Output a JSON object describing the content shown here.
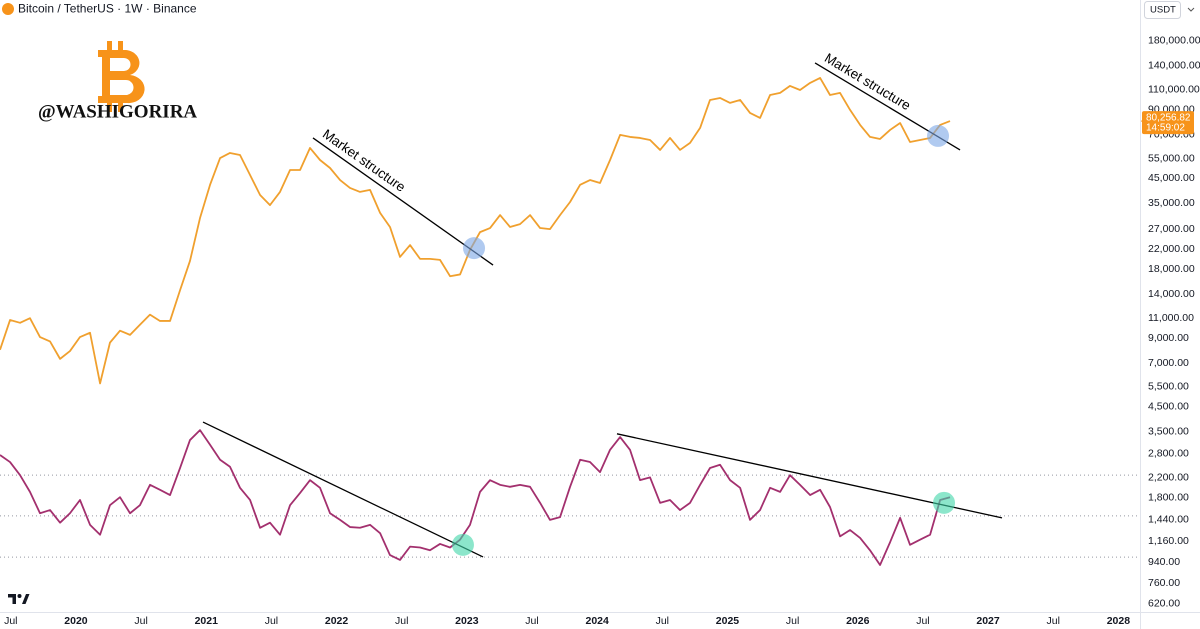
{
  "header": {
    "symbol": "Bitcoin / TetherUS · 1W · Binance",
    "currency": "USDT",
    "watermark": "@WASHIGORIRA"
  },
  "chart_data": {
    "type": "line",
    "log_scale": true,
    "xlim": [
      2019.417,
      2028.166
    ],
    "ylim": [
      569,
      272000
    ],
    "x": [
      2019.417,
      2019.494,
      2019.571,
      2019.647,
      2019.724,
      2019.801,
      2019.878,
      2019.954,
      2020.031,
      2020.108,
      2020.185,
      2020.261,
      2020.338,
      2020.415,
      2020.491,
      2020.568,
      2020.645,
      2020.722,
      2020.799,
      2020.875,
      2020.952,
      2021.029,
      2021.106,
      2021.182,
      2021.259,
      2021.336,
      2021.413,
      2021.489,
      2021.566,
      2021.643,
      2021.72,
      2021.796,
      2021.873,
      2021.95,
      2022.027,
      2022.103,
      2022.18,
      2022.257,
      2022.334,
      2022.41,
      2022.487,
      2022.564,
      2022.641,
      2022.717,
      2022.794,
      2022.871,
      2022.948,
      2023.024,
      2023.101,
      2023.178,
      2023.255,
      2023.331,
      2023.408,
      2023.485,
      2023.562,
      2023.638,
      2023.715,
      2023.792,
      2023.869,
      2023.945,
      2024.022,
      2024.099,
      2024.176,
      2024.252,
      2024.329,
      2024.406,
      2024.483,
      2024.559,
      2024.636,
      2024.713,
      2024.79,
      2024.866,
      2024.943,
      2025.02,
      2025.097,
      2025.173,
      2025.25,
      2025.327,
      2025.404,
      2025.48,
      2025.557,
      2025.634,
      2025.711,
      2025.787,
      2025.864,
      2025.941,
      2026.018,
      2026.094,
      2026.171,
      2026.248,
      2026.325,
      2026.401,
      2026.478,
      2026.555,
      2026.632,
      2026.708
    ],
    "series": [
      {
        "color": "#f0a02e",
        "values": [
          8000,
          10800,
          10500,
          11000,
          9100,
          8700,
          7300,
          7900,
          9100,
          9500,
          5700,
          8600,
          9700,
          9300,
          10300,
          11400,
          10700,
          10700,
          14600,
          19600,
          30200,
          42200,
          55300,
          58200,
          57000,
          46600,
          38100,
          34400,
          39300,
          49000,
          49000,
          61200,
          54200,
          50000,
          44300,
          40900,
          39300,
          40100,
          31800,
          27600,
          20400,
          23000,
          20000,
          20000,
          19800,
          16800,
          17100,
          21900,
          26200,
          27300,
          31100,
          27600,
          28400,
          31100,
          27300,
          27000,
          31100,
          35500,
          42200,
          44300,
          43000,
          54200,
          69800,
          68400,
          67700,
          66300,
          60000,
          67700,
          60000,
          64400,
          74900,
          99300,
          101300,
          96400,
          99300,
          87100,
          82800,
          104400,
          106600,
          114400,
          109800,
          117900,
          124000,
          104400,
          106600,
          89800,
          77200,
          68400,
          67000,
          73400,
          78700,
          65000,
          66300,
          67700,
          77200,
          80256.82
        ]
      },
      {
        "color": "#a3306e",
        "values": [
          2770,
          2580,
          2260,
          1910,
          1540,
          1590,
          1400,
          1540,
          1760,
          1370,
          1240,
          1670,
          1810,
          1540,
          1670,
          2050,
          1950,
          1850,
          2430,
          3220,
          3560,
          3070,
          2640,
          2460,
          1990,
          1760,
          1330,
          1400,
          1240,
          1670,
          1890,
          2150,
          1990,
          1540,
          1440,
          1340,
          1330,
          1370,
          1260,
          1010,
          962,
          1100,
          1090,
          1060,
          1130,
          1090,
          1180,
          1370,
          1910,
          2150,
          2050,
          2010,
          2050,
          2010,
          1710,
          1440,
          1480,
          2010,
          2640,
          2580,
          2330,
          2920,
          3320,
          2920,
          2150,
          2210,
          1710,
          1760,
          1590,
          1710,
          2050,
          2430,
          2510,
          2150,
          1990,
          1440,
          1590,
          1990,
          1910,
          2260,
          2050,
          1850,
          1950,
          1640,
          1220,
          1300,
          1200,
          1060,
          914,
          1150,
          1470,
          1120,
          1180,
          1240,
          1760,
          1810
        ]
      }
    ],
    "levels": [
      2260,
      1500,
      990
    ],
    "trendlines": [
      {
        "x": [
          2021.819,
          2023.201
        ],
        "y": [
          67700,
          18800
        ],
        "label": "Market structure"
      },
      {
        "x": [
          2025.672,
          2026.785
        ],
        "y": [
          144200,
          60000
        ],
        "label": "Market structure"
      },
      {
        "x": [
          2020.975,
          2023.124
        ],
        "y": [
          3860,
          991
        ]
      },
      {
        "x": [
          2024.152,
          2027.107
        ],
        "y": [
          3430,
          1470
        ]
      }
    ],
    "highlights": [
      {
        "x": 2023.055,
        "y": 22300,
        "color": "#7ba7e6"
      },
      {
        "x": 2026.616,
        "y": 69100,
        "color": "#7ba7e6"
      },
      {
        "x": 2022.97,
        "y": 1120,
        "color": "#3fd6a8"
      },
      {
        "x": 2026.662,
        "y": 1710,
        "color": "#3fd6a8"
      }
    ],
    "last_price": {
      "value": 80256.82,
      "label": "80,256.82",
      "countdown": "14:59:02",
      "color": "#f7931a"
    },
    "yticks": [
      {
        "value": 180000,
        "label": "180,000.00"
      },
      {
        "value": 140000,
        "label": "140,000.00"
      },
      {
        "value": 110000,
        "label": "110,000.00"
      },
      {
        "value": 90000,
        "label": "90,000.00"
      },
      {
        "value": 70000,
        "label": "70,000.00"
      },
      {
        "value": 55000,
        "label": "55,000.00"
      },
      {
        "value": 45000,
        "label": "45,000.00"
      },
      {
        "value": 35000,
        "label": "35,000.00"
      },
      {
        "value": 27000,
        "label": "27,000.00"
      },
      {
        "value": 22000,
        "label": "22,000.00"
      },
      {
        "value": 18000,
        "label": "18,000.00"
      },
      {
        "value": 14000,
        "label": "14,000.00"
      },
      {
        "value": 11000,
        "label": "11,000.00"
      },
      {
        "value": 9000,
        "label": "9,000.00"
      },
      {
        "value": 7000,
        "label": "7,000.00"
      },
      {
        "value": 5500,
        "label": "5,500.00"
      },
      {
        "value": 4500,
        "label": "4,500.00"
      },
      {
        "value": 3500,
        "label": "3,500.00"
      },
      {
        "value": 2800,
        "label": "2,800.00"
      },
      {
        "value": 2200,
        "label": "2,200.00"
      },
      {
        "value": 1800,
        "label": "1,800.00"
      },
      {
        "value": 1440,
        "label": "1,440.00"
      },
      {
        "value": 1160,
        "label": "1,160.00"
      },
      {
        "value": 940,
        "label": "940.00"
      },
      {
        "value": 760,
        "label": "760.00"
      },
      {
        "value": 620,
        "label": "620.00"
      }
    ],
    "xticks": [
      {
        "value": 2019.5,
        "label": "Jul"
      },
      2020,
      {
        "value": 2020.5,
        "label": "Jul"
      },
      2021,
      {
        "value": 2021.5,
        "label": "Jul"
      },
      2022,
      {
        "value": 2022.5,
        "label": "Jul"
      },
      2023,
      {
        "value": 2023.5,
        "label": "Jul"
      },
      2024,
      {
        "value": 2024.5,
        "label": "Jul"
      },
      2025,
      {
        "value": 2025.5,
        "label": "Jul"
      },
      2026,
      {
        "value": 2026.5,
        "label": "Jul"
      },
      2027,
      {
        "value": 2027.5,
        "label": "Jul"
      },
      2028
    ]
  }
}
